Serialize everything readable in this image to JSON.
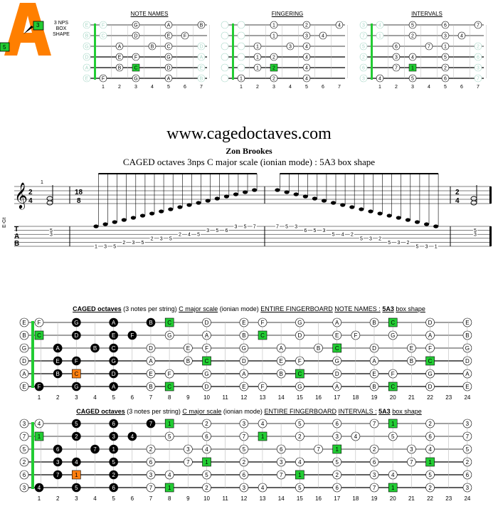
{
  "logo": {
    "letter": "A",
    "lines": [
      "3 NPS",
      "BOX",
      "SHAPE"
    ],
    "badge_top": "3",
    "badge_bottom": "5"
  },
  "mini_titles": {
    "notes": "NOTE NAMES",
    "fingering": "FINGERING",
    "intervals": "INTERVALS"
  },
  "site": "www.cagedoctaves.com",
  "author": "Zon Brookes",
  "subtitle": "CAGED octaves 3nps C major scale (ionian mode) : 5A3 box shape",
  "staff": {
    "instrument": "E-Gt",
    "time1": [
      "2",
      "4"
    ],
    "time2": [
      "18",
      "8"
    ],
    "time3": [
      "2",
      "4"
    ],
    "finger_mark": "1",
    "tab_letters": [
      "T",
      "A",
      "B"
    ],
    "tab_asc": [
      {
        "s": 6,
        "f": "1"
      },
      {
        "s": 6,
        "f": "3"
      },
      {
        "s": 6,
        "f": "5"
      },
      {
        "s": 5,
        "f": "2"
      },
      {
        "s": 5,
        "f": "3"
      },
      {
        "s": 5,
        "f": "5"
      },
      {
        "s": 4,
        "f": "2"
      },
      {
        "s": 4,
        "f": "3"
      },
      {
        "s": 4,
        "f": "5"
      },
      {
        "s": 3,
        "f": "2"
      },
      {
        "s": 3,
        "f": "4"
      },
      {
        "s": 3,
        "f": "5"
      },
      {
        "s": 2,
        "f": "3"
      },
      {
        "s": 2,
        "f": "5"
      },
      {
        "s": 2,
        "f": "6"
      },
      {
        "s": 1,
        "f": "3"
      },
      {
        "s": 1,
        "f": "5"
      },
      {
        "s": 1,
        "f": "7"
      }
    ],
    "tab_desc": [
      {
        "s": 1,
        "f": "7"
      },
      {
        "s": 1,
        "f": "5"
      },
      {
        "s": 1,
        "f": "3"
      },
      {
        "s": 2,
        "f": "6"
      },
      {
        "s": 2,
        "f": "5"
      },
      {
        "s": 2,
        "f": "3"
      },
      {
        "s": 3,
        "f": "5"
      },
      {
        "s": 3,
        "f": "4"
      },
      {
        "s": 3,
        "f": "2"
      },
      {
        "s": 4,
        "f": "5"
      },
      {
        "s": 4,
        "f": "3"
      },
      {
        "s": 4,
        "f": "2"
      },
      {
        "s": 5,
        "f": "5"
      },
      {
        "s": 5,
        "f": "3"
      },
      {
        "s": 5,
        "f": "2"
      },
      {
        "s": 6,
        "f": "5"
      },
      {
        "s": 6,
        "f": "3"
      },
      {
        "s": 6,
        "f": "1"
      }
    ],
    "chord_first": [
      {
        "s": 2,
        "f": "5"
      },
      {
        "s": 3,
        "f": "3"
      }
    ],
    "chord_last": [
      {
        "s": 2,
        "f": "5"
      },
      {
        "s": 3,
        "f": "3"
      }
    ]
  },
  "board_notes_title": {
    "pre": "CAGED octaves",
    "mid": "(3 notes per string)",
    "key": "C major scale",
    "mode": "(ionian mode)",
    "ctx": "ENTIRE FINGERBOARD",
    "kind": "NOTE NAMES :",
    "shape": "5A3",
    "suffix": "box shape"
  },
  "board_intervals_title": {
    "pre": "CAGED octaves",
    "mid": "(3 notes per string)",
    "key": "C major scale",
    "mode": "(ionian mode)",
    "ctx": "ENTIRE FINGERBOARD",
    "kind": "INTERVALS :",
    "shape": "5A3",
    "suffix": "box shape"
  },
  "fret_numbers": [
    "1",
    "2",
    "3",
    "4",
    "5",
    "6",
    "7",
    "8",
    "9",
    "10",
    "11",
    "12",
    "13",
    "14",
    "15",
    "16",
    "17",
    "18",
    "19",
    "20",
    "21",
    "22",
    "23",
    "24"
  ],
  "mini_fret_numbers": [
    "1",
    "2",
    "3",
    "4",
    "5",
    "6",
    "7"
  ],
  "notes_grid": [
    [
      "E",
      "F",
      "",
      "G",
      "",
      "A",
      "",
      "B",
      "C",
      "",
      "D",
      "",
      "E",
      "F",
      "",
      "G",
      "",
      "A",
      "",
      "B",
      "C",
      "",
      "D",
      "",
      "E"
    ],
    [
      "B",
      "C",
      "",
      "D",
      "",
      "E",
      "F",
      "",
      "G",
      "",
      "A",
      "",
      "B",
      "C",
      "",
      "D",
      "",
      "E",
      "F",
      "",
      "G",
      "",
      "A",
      "",
      "B"
    ],
    [
      "G",
      "",
      "A",
      "",
      "B",
      "C",
      "",
      "D",
      "",
      "E",
      "F",
      "",
      "G",
      "",
      "A",
      "",
      "B",
      "C",
      "",
      "D",
      "",
      "E",
      "F",
      "",
      "G"
    ],
    [
      "D",
      "",
      "E",
      "F",
      "",
      "G",
      "",
      "A",
      "",
      "B",
      "C",
      "",
      "D",
      "",
      "E",
      "F",
      "",
      "G",
      "",
      "A",
      "",
      "B",
      "C",
      "",
      "D"
    ],
    [
      "A",
      "",
      "B",
      "C",
      "",
      "D",
      "",
      "E",
      "F",
      "",
      "G",
      "",
      "A",
      "",
      "B",
      "C",
      "",
      "D",
      "",
      "E",
      "F",
      "",
      "G",
      "",
      "A"
    ],
    [
      "E",
      "F",
      "",
      "G",
      "",
      "A",
      "",
      "B",
      "C",
      "",
      "D",
      "",
      "E",
      "F",
      "",
      "G",
      "",
      "A",
      "",
      "B",
      "C",
      "",
      "D",
      "",
      "E"
    ]
  ],
  "intervals_grid": [
    [
      "3",
      "4",
      "",
      "5",
      "",
      "6",
      "",
      "7",
      "1",
      "",
      "2",
      "",
      "3",
      "4",
      "",
      "5",
      "",
      "6",
      "",
      "7",
      "1",
      "",
      "2",
      "",
      "3"
    ],
    [
      "7",
      "1",
      "",
      "2",
      "",
      "3",
      "4",
      "",
      "5",
      "",
      "6",
      "",
      "7",
      "1",
      "",
      "2",
      "",
      "3",
      "4",
      "",
      "5",
      "",
      "6",
      "",
      "7"
    ],
    [
      "5",
      "",
      "6",
      "",
      "7",
      "1",
      "",
      "2",
      "",
      "3",
      "4",
      "",
      "5",
      "",
      "6",
      "",
      "7",
      "1",
      "",
      "2",
      "",
      "3",
      "4",
      "",
      "5"
    ],
    [
      "2",
      "",
      "3",
      "4",
      "",
      "5",
      "",
      "6",
      "",
      "7",
      "1",
      "",
      "2",
      "",
      "3",
      "4",
      "",
      "5",
      "",
      "6",
      "",
      "7",
      "1",
      "",
      "2"
    ],
    [
      "6",
      "",
      "7",
      "1",
      "",
      "2",
      "",
      "3",
      "4",
      "",
      "5",
      "",
      "6",
      "",
      "7",
      "1",
      "",
      "2",
      "",
      "3",
      "4",
      "",
      "5",
      "",
      "6"
    ],
    [
      "3",
      "4",
      "",
      "5",
      "",
      "6",
      "",
      "7",
      "1",
      "",
      "2",
      "",
      "3",
      "4",
      "",
      "5",
      "",
      "6",
      "",
      "7",
      "1",
      "",
      "2",
      "",
      "3"
    ]
  ],
  "fingering_grid": [
    [
      "",
      "",
      "",
      "1",
      "",
      "2",
      "",
      "4"
    ],
    [
      "",
      "",
      "",
      "1",
      "",
      "3",
      "4",
      ""
    ],
    [
      "",
      "",
      "1",
      "",
      "3",
      "4",
      "",
      ""
    ],
    [
      "",
      "",
      "1",
      "2",
      "",
      "4",
      "",
      ""
    ],
    [
      "",
      "",
      "1",
      "2",
      "",
      "4",
      "",
      ""
    ],
    [
      "",
      "1",
      "",
      "2",
      "",
      "4",
      "",
      ""
    ]
  ],
  "shape_cells": [
    [
      1,
      3
    ],
    [
      1,
      5
    ],
    [
      1,
      7
    ],
    [
      2,
      3
    ],
    [
      2,
      5
    ],
    [
      2,
      6
    ],
    [
      3,
      2
    ],
    [
      3,
      4
    ],
    [
      3,
      5
    ],
    [
      4,
      2
    ],
    [
      4,
      3
    ],
    [
      4,
      5
    ],
    [
      5,
      2
    ],
    [
      5,
      3
    ],
    [
      5,
      5
    ],
    [
      6,
      1
    ],
    [
      6,
      3
    ],
    [
      6,
      5
    ]
  ],
  "root_cells": [
    [
      2,
      1
    ],
    [
      5,
      3
    ]
  ],
  "colors": {
    "root": "#22cc33",
    "orange": "#ff7f0f",
    "ghost": "#a8d8c8",
    "accent": "#ff7f00",
    "black": "#000000"
  }
}
